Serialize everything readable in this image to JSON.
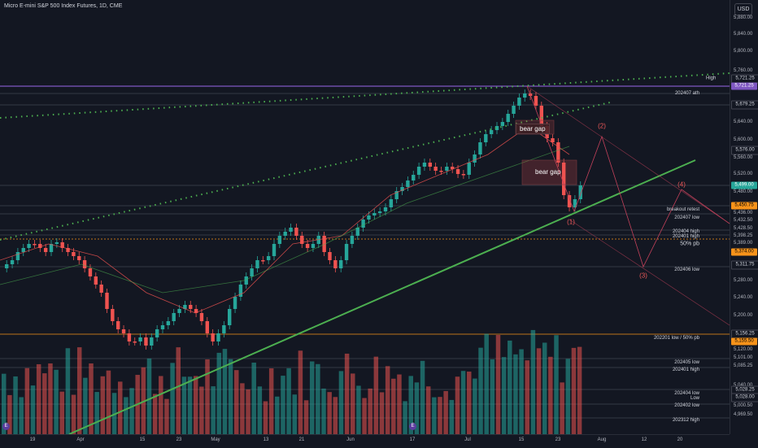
{
  "header": {
    "symbol_title": "Micro E-mini S&P 500 Index Futures, 1D, CME",
    "currency": "USD"
  },
  "colors": {
    "background": "#131722",
    "bull": "#26a69a",
    "bear": "#ef5350",
    "trendline": "#4caf50",
    "dotted_channel": "#4caf50",
    "ath_line": "#7e57c2",
    "orange_level": "#f7931a",
    "wave_path": "#c2415a"
  },
  "price_scale": {
    "ticks": [
      "5,880.00",
      "5,840.00",
      "5,800.00",
      "5,760.00",
      "5,640.00",
      "5,600.00",
      "5,560.00",
      "5,520.00",
      "5,480.00",
      "5,436.00",
      "5,432.50",
      "5,428.50",
      "5,398.25",
      "5,389.00",
      "5,280.00",
      "5,240.00",
      "5,200.00",
      "5,120.00",
      "5,101.00",
      "5,085.25",
      "5,040.00",
      "5,000.50",
      "4,969.50"
    ],
    "tags": {
      "high_label": "High",
      "high_value": "5,721.25",
      "ath_value": "5,721.25",
      "v5679": "5,679.25",
      "v5576": "5,576.00",
      "last_price": "5,499.00",
      "orange_upper": "5,450.75",
      "orange_lower": "5,374.00",
      "v5311": "5,311.75",
      "v5156": "5,156.25",
      "orange_5155": "5,155.50",
      "v5028": "5,028.25",
      "v5028b": "5,028.00"
    }
  },
  "levels": {
    "ath": "202407 ath",
    "breakout_retest": "breakout retest",
    "jul_low": "202407 low",
    "apr_high": "202404 high",
    "jan_high": "202401 high",
    "pb50": "50% pb",
    "jun_low": "202406 low",
    "jan_low_pb": "202201 low / 50% pb",
    "may_low": "202405 low",
    "jan_high_2": "202401 high",
    "apr_low": "202404 low",
    "low_label": "Low",
    "feb_low": "202402 low",
    "dec_high": "202312 high"
  },
  "annotations": {
    "bear_gap_1": "bear gap",
    "bear_gap_2": "bear gap",
    "wave_1": "(1)",
    "wave_2": "(2)",
    "wave_3": "(3)",
    "wave_4": "(4)"
  },
  "time_axis": {
    "labels": [
      "19",
      "Apr",
      "15",
      "23",
      "May",
      "13",
      "21",
      "Jun",
      "17",
      "Jul",
      "15",
      "23",
      "Aug",
      "12",
      "20"
    ]
  }
}
